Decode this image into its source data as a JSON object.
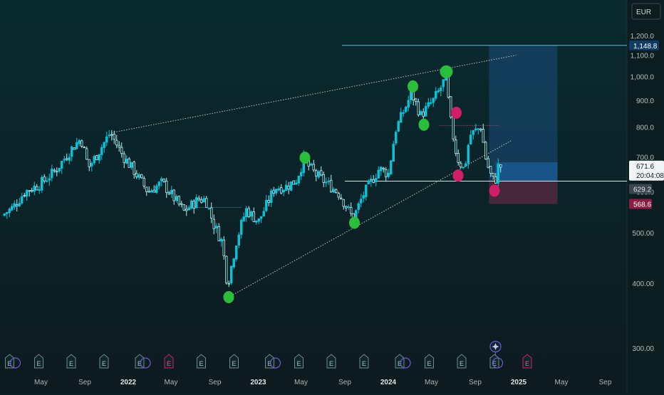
{
  "chart_data": {
    "type": "candlestick",
    "currency": "EUR",
    "y_axis": {
      "ticks": [
        300,
        400,
        500,
        600,
        700,
        800,
        900,
        1000,
        1100,
        1200
      ],
      "tick_labels": [
        "300.00",
        "400.00",
        "500.00",
        "600.0",
        "700.0",
        "800.0",
        "900.0",
        "1,000.0",
        "1,100.0",
        "1,200.0"
      ],
      "range": [
        270,
        1290
      ]
    },
    "x_axis": {
      "tick_labels": [
        "May",
        "Sep",
        "2022",
        "May",
        "Sep",
        "2023",
        "May",
        "Sep",
        "2024",
        "May",
        "Sep",
        "2025",
        "May",
        "Sep"
      ],
      "range": [
        "2021-02",
        "2025-12"
      ]
    },
    "price_labels": {
      "target": "1,148.8",
      "last_price": "671.6",
      "countdown": "20:04:08",
      "entry": "629.2",
      "stop": "568.6"
    },
    "levels": {
      "target": 1148.8,
      "last_price": 671.6,
      "entry": 629.2,
      "stop": 568.6,
      "support": 629.2
    },
    "channel": {
      "upper": [
        {
          "x": "2021-11-15",
          "y": 780
        },
        {
          "x": "2024-12-25",
          "y": 1100
        }
      ],
      "lower": [
        {
          "x": "2022-10-10",
          "y": 376
        },
        {
          "x": "2024-12-10",
          "y": 752
        }
      ]
    },
    "position": {
      "start": "2024-10-10",
      "end": "2025-04-20",
      "entry": 629.2,
      "target": 1148.8,
      "stop": 568.6
    },
    "swing_markers": [
      {
        "x": "2022-10-10",
        "y": 376,
        "kind": "low"
      },
      {
        "x": "2023-05-12",
        "y": 698,
        "kind": "high"
      },
      {
        "x": "2023-09-28",
        "y": 523,
        "kind": "low"
      },
      {
        "x": "2024-03-10",
        "y": 958,
        "kind": "high"
      },
      {
        "x": "2024-04-10",
        "y": 808,
        "kind": "low"
      },
      {
        "x": "2024-06-12",
        "y": 1022,
        "kind": "high"
      },
      {
        "x": "2024-07-10",
        "y": 852,
        "kind": "pullback"
      },
      {
        "x": "2024-07-15",
        "y": 645,
        "kind": "pullback"
      },
      {
        "x": "2024-10-25",
        "y": 603,
        "kind": "pullback"
      }
    ],
    "price_path": [
      [
        "2021-01-15",
        540
      ],
      [
        "2021-02-15",
        560
      ],
      [
        "2021-03-20",
        600
      ],
      [
        "2021-05-01",
        620
      ],
      [
        "2021-06-15",
        660
      ],
      [
        "2021-08-01",
        730
      ],
      [
        "2021-08-25",
        760
      ],
      [
        "2021-09-15",
        668
      ],
      [
        "2021-10-10",
        710
      ],
      [
        "2021-11-15",
        780
      ],
      [
        "2021-12-20",
        705
      ],
      [
        "2022-01-20",
        660
      ],
      [
        "2022-03-01",
        600
      ],
      [
        "2022-04-10",
        625
      ],
      [
        "2022-06-10",
        550
      ],
      [
        "2022-07-20",
        580
      ],
      [
        "2022-08-10",
        580
      ],
      [
        "2022-09-01",
        520
      ],
      [
        "2022-09-25",
        480
      ],
      [
        "2022-10-10",
        395
      ],
      [
        "2022-11-05",
        485
      ],
      [
        "2022-12-01",
        555
      ],
      [
        "2023-01-05",
        525
      ],
      [
        "2023-02-20",
        612
      ],
      [
        "2023-03-20",
        612
      ],
      [
        "2023-04-20",
        630
      ],
      [
        "2023-05-12",
        690
      ],
      [
        "2023-06-15",
        648
      ],
      [
        "2023-07-20",
        620
      ],
      [
        "2023-08-20",
        595
      ],
      [
        "2023-09-28",
        532
      ],
      [
        "2023-10-25",
        590
      ],
      [
        "2023-12-10",
        665
      ],
      [
        "2024-01-05",
        650
      ],
      [
        "2024-01-25",
        790
      ],
      [
        "2024-03-10",
        930
      ],
      [
        "2024-04-05",
        842
      ],
      [
        "2024-05-10",
        900
      ],
      [
        "2024-06-05",
        965
      ],
      [
        "2024-06-14",
        1015
      ],
      [
        "2024-06-25",
        840
      ],
      [
        "2024-07-15",
        700
      ],
      [
        "2024-08-05",
        660
      ],
      [
        "2024-08-20",
        770
      ],
      [
        "2024-09-20",
        800
      ],
      [
        "2024-10-05",
        690
      ],
      [
        "2024-10-20",
        640
      ],
      [
        "2024-10-30",
        625
      ],
      [
        "2024-11-08",
        671.6
      ]
    ],
    "baseline_band": {
      "start": "2022-06-15",
      "end": "2022-11-15",
      "y": 560
    },
    "pink_dotted_line": {
      "start": "2024-05-25",
      "end": "2024-11-05",
      "y": 805
    },
    "event_markers": [
      {
        "x": "2021-02-02",
        "label": "E",
        "kind": "earnings"
      },
      {
        "x": "2021-04-25",
        "label": "E",
        "kind": "earnings"
      },
      {
        "x": "2021-07-25",
        "label": "E",
        "kind": "earnings"
      },
      {
        "x": "2021-10-25",
        "label": "E",
        "kind": "earnings"
      },
      {
        "x": "2022-02-02",
        "label": "E",
        "kind": "earnings"
      },
      {
        "x": "2022-04-25",
        "label": "E",
        "kind": "earnings-negative"
      },
      {
        "x": "2022-07-25",
        "label": "E",
        "kind": "earnings"
      },
      {
        "x": "2022-10-25",
        "label": "E",
        "kind": "earnings"
      },
      {
        "x": "2023-02-02",
        "label": "E",
        "kind": "earnings"
      },
      {
        "x": "2023-04-25",
        "label": "E",
        "kind": "earnings"
      },
      {
        "x": "2023-07-25",
        "label": "E",
        "kind": "earnings"
      },
      {
        "x": "2023-10-25",
        "label": "E",
        "kind": "earnings"
      },
      {
        "x": "2024-02-02",
        "label": "E",
        "kind": "earnings"
      },
      {
        "x": "2024-04-25",
        "label": "E",
        "kind": "earnings"
      },
      {
        "x": "2024-07-25",
        "label": "E",
        "kind": "earnings"
      },
      {
        "x": "2024-10-25",
        "label": "E",
        "kind": "earnings"
      },
      {
        "x": "2025-01-25",
        "label": "E",
        "kind": "earnings-negative"
      }
    ],
    "dividend_markers": [
      "2021-02-12",
      "2022-02-12",
      "2023-02-12",
      "2024-02-12",
      "2024-10-28"
    ],
    "special_marker": {
      "x": "2024-10-28",
      "icon": "sparkle-icon"
    },
    "colors": {
      "background_top": "#092b30",
      "background_bottom": "#0d1a20",
      "candle_up": "#08c3d9",
      "candle_down": "#aff3f6",
      "green_marker": "#2bbe3d",
      "pink_marker": "#d01e67",
      "profit_zone": "#1b4f7c",
      "loss_zone": "#5a2c3f",
      "target_line": "#27d0e3",
      "last_price_bg": "#113b63",
      "stop_bg": "#8a1e44",
      "entry_bg": "#3a4550"
    }
  }
}
